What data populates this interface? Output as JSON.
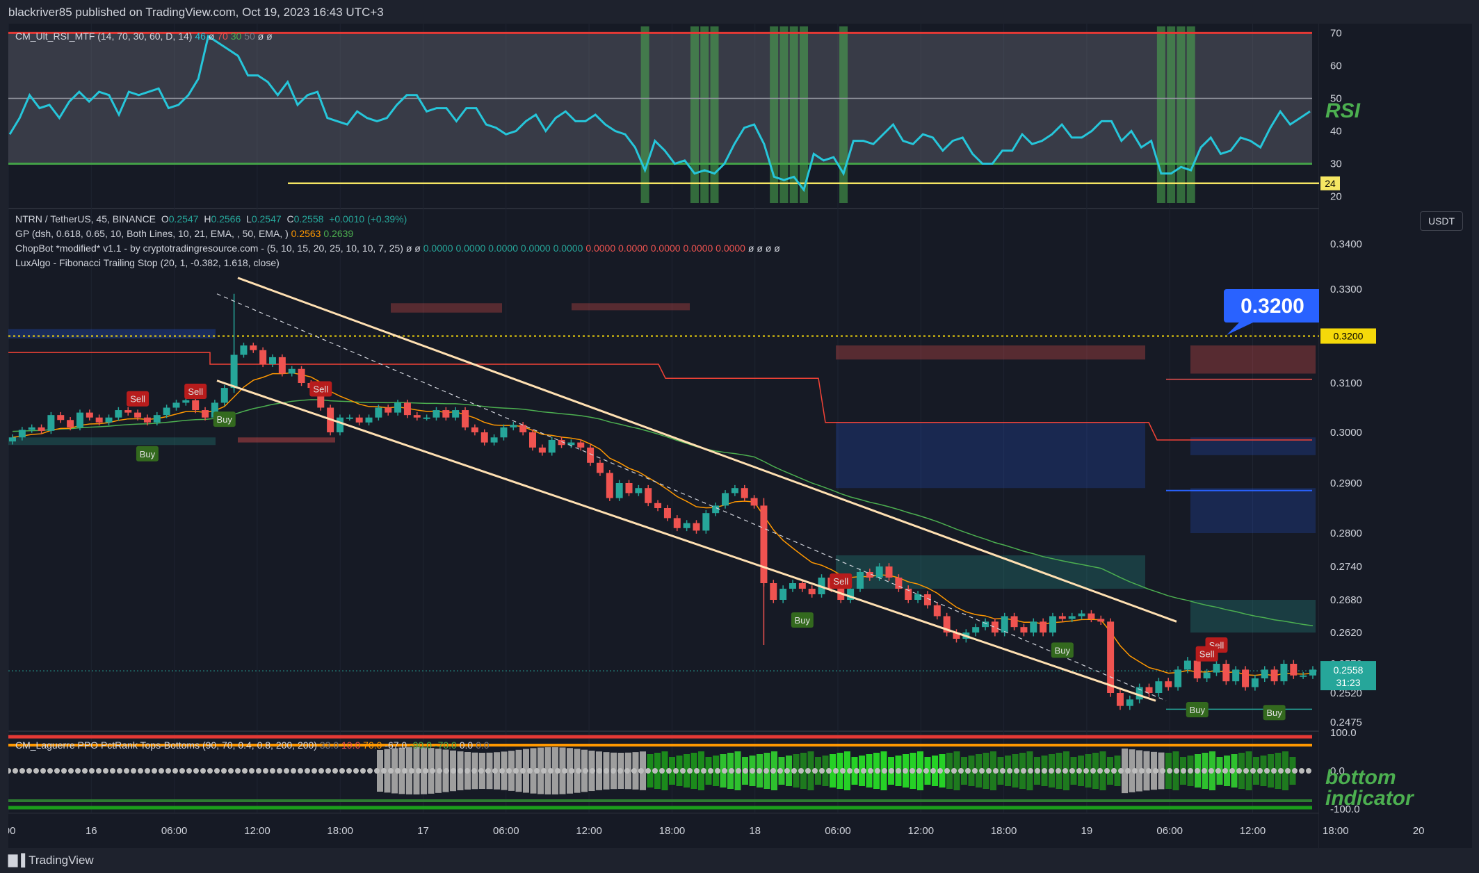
{
  "header": {
    "text": "blackriver85 published on TradingView.com, Oct 19, 2023 16:43 UTC+3"
  },
  "footer": {
    "brand": "TradingView"
  },
  "rsi_pane": {
    "legend_name": "CM_Ult_RSI_MTF (14, 70, 30, 60, D, 14)",
    "legend_val1": "46",
    "legend_rest": "ø",
    "legend_val2": "70",
    "legend_val3": "30",
    "legend_val4": "50",
    "legend_tail": "ø  ø",
    "label": "RSI",
    "y_ticks": [
      "70",
      "60",
      "50",
      "40",
      "30",
      "20"
    ],
    "line_tag": "24",
    "upper": 70,
    "mid": 50,
    "lower": 30,
    "yellow_line": 24,
    "colors": {
      "line": "#26c6da",
      "upper": "#e53935",
      "lower": "#43a047",
      "bg": "#787b86",
      "yellow": "#f5e663",
      "highlight": "#4caf50"
    },
    "values": [
      39,
      44,
      51,
      47,
      48,
      44,
      49,
      52,
      49,
      52,
      51,
      45,
      52,
      51,
      52,
      53,
      47,
      48,
      51,
      56,
      69,
      67,
      65,
      63,
      57,
      57,
      55,
      51,
      55,
      48,
      51,
      52,
      44,
      43,
      42,
      46,
      44,
      43,
      44,
      48,
      51,
      51,
      46,
      47,
      47,
      43,
      47,
      47,
      42,
      41,
      39,
      40,
      43,
      45,
      40,
      44,
      46,
      43,
      43,
      45,
      42,
      40,
      39,
      35,
      28,
      37,
      34,
      30,
      31,
      27,
      28,
      27,
      30,
      36,
      41,
      42,
      36,
      26,
      25,
      26,
      22,
      33,
      31,
      32,
      27,
      37,
      37,
      36,
      39,
      42,
      37,
      36,
      39,
      38,
      34,
      37,
      38,
      33,
      30,
      30,
      34,
      34,
      39,
      36,
      37,
      39,
      42,
      38,
      38,
      40,
      43,
      43,
      37,
      40,
      35,
      37,
      27,
      27,
      29,
      28,
      35,
      38,
      33,
      34,
      38,
      37,
      35,
      41,
      46,
      42,
      44,
      46
    ]
  },
  "main_pane": {
    "symbol_line": "NTRN / TetherUS, 45, BINANCE",
    "ohlc": {
      "o_label": "O",
      "o": "0.2547",
      "h_label": "H",
      "h": "0.2566",
      "l_label": "L",
      "l": "0.2547",
      "c_label": "C",
      "c": "0.2558",
      "chg": "+0.0010 (+0.39%)"
    },
    "gp_line": "GP (dsh, 0.618, 0.65, 10, Both Lines, 10, 21, EMA, , 50, EMA, )",
    "gp_v1": "0.2563",
    "gp_v2": "0.2639",
    "chopbot_line": "ChopBot *modified* v1.1 - by cryptotradingresource.com - (5, 10, 15, 20, 25, 10, 10, 7, 25)  ø  ø",
    "chopbot_green": "0.0000  0.0000  0.0000  0.0000  0.0000",
    "chopbot_red": "0.0000  0.0000  0.0000  0.0000  0.0000",
    "chopbot_tail": "ø  ø  ø  ø",
    "luxalgo_line": "LuxAlgo - Fibonacci Trailing Stop (20, 1, -0.382, 1.618, close)",
    "currency": "USDT",
    "y_ticks": [
      "0.3400",
      "0.3300",
      "0.3100",
      "0.3000",
      "0.2900",
      "0.2800",
      "0.2740",
      "0.2680",
      "0.2620",
      "0.2570",
      "0.2520",
      "0.2475"
    ],
    "last_price": "0.2558",
    "countdown": "31:23",
    "target_tag": "0.3200",
    "callout": "0.3200",
    "colors": {
      "up": "#26a69a",
      "down": "#ef5350",
      "ema_fast": "#ff9800",
      "ema_slow": "#4caf50",
      "trail": "#f44336",
      "channel": "#ffe0b2",
      "callout": "#2962ff",
      "target": "#f5d90a"
    },
    "buy_label": "Buy",
    "sell_label": "Sell",
    "signals": [
      {
        "type": "sell",
        "candle": 13
      },
      {
        "type": "sell",
        "candle": 19
      },
      {
        "type": "buy",
        "candle": 14
      },
      {
        "type": "buy",
        "candle": 22
      },
      {
        "type": "sell",
        "candle": 32
      },
      {
        "type": "sell",
        "candle": 86
      },
      {
        "type": "buy",
        "candle": 82
      },
      {
        "type": "buy",
        "candle": 109
      },
      {
        "type": "sell",
        "candle": 125
      },
      {
        "type": "buy",
        "candle": 123
      },
      {
        "type": "sell",
        "candle": 124
      },
      {
        "type": "buy",
        "candle": 131
      }
    ],
    "closes": [
      0.299,
      0.3005,
      0.301,
      0.3003,
      0.3035,
      0.3025,
      0.301,
      0.304,
      0.303,
      0.302,
      0.303,
      0.3045,
      0.304,
      0.303,
      0.302,
      0.3035,
      0.305,
      0.306,
      0.3065,
      0.3045,
      0.303,
      0.306,
      0.309,
      0.316,
      0.318,
      0.317,
      0.314,
      0.3155,
      0.312,
      0.313,
      0.31,
      0.309,
      0.305,
      0.3,
      0.303,
      0.303,
      0.302,
      0.303,
      0.305,
      0.304,
      0.306,
      0.3035,
      0.303,
      0.303,
      0.3045,
      0.303,
      0.3045,
      0.301,
      0.3,
      0.298,
      0.299,
      0.301,
      0.3015,
      0.3,
      0.297,
      0.296,
      0.2985,
      0.2975,
      0.298,
      0.297,
      0.294,
      0.292,
      0.287,
      0.29,
      0.288,
      0.289,
      0.286,
      0.285,
      0.283,
      0.281,
      0.282,
      0.2805,
      0.284,
      0.2855,
      0.288,
      0.289,
      0.287,
      0.2855,
      0.271,
      0.268,
      0.27,
      0.271,
      0.27,
      0.269,
      0.272,
      0.27,
      0.268,
      0.27,
      0.273,
      0.272,
      0.274,
      0.272,
      0.27,
      0.268,
      0.269,
      0.267,
      0.265,
      0.262,
      0.261,
      0.262,
      0.263,
      0.264,
      0.262,
      0.265,
      0.263,
      0.262,
      0.264,
      0.262,
      0.265,
      0.2645,
      0.265,
      0.2655,
      0.2645,
      0.264,
      0.252,
      0.25,
      0.251,
      0.253,
      0.252,
      0.254,
      0.253,
      0.256,
      0.2575,
      0.2545,
      0.2555,
      0.257,
      0.254,
      0.256,
      0.253,
      0.2545,
      0.256,
      0.254,
      0.257,
      0.255,
      0.255,
      0.256
    ]
  },
  "bottom_pane": {
    "legend_name": "CM_Laguerre PPO PctRank Tops-Bottoms (90, 70, 0.4, 0.8, 200, 200)",
    "legend_vals": [
      {
        "text": "33.0",
        "color": "#787b86"
      },
      {
        "text": "10.0",
        "color": "#ef5350"
      },
      {
        "text": "70.0",
        "color": "#ff9800"
      },
      {
        "text": "-67.0",
        "color": "#d1d4dc"
      },
      {
        "text": "-90.0",
        "color": "#4caf50"
      },
      {
        "text": "-70.0",
        "color": "#4caf50"
      },
      {
        "text": "0.0",
        "color": "#d1d4dc"
      },
      {
        "text": "0.0",
        "color": "#787b86"
      }
    ],
    "label_line1": "bottom",
    "label_line2": "indicator",
    "y_ticks": [
      "100.0",
      "0.0",
      "-100.0"
    ]
  },
  "x_axis": {
    "ticks": [
      ":00",
      "16",
      "06:00",
      "12:00",
      "18:00",
      "17",
      "06:00",
      "12:00",
      "18:00",
      "18",
      "06:00",
      "12:00",
      "18:00",
      "19",
      "06:00",
      "12:00",
      "18:00",
      "20"
    ]
  }
}
